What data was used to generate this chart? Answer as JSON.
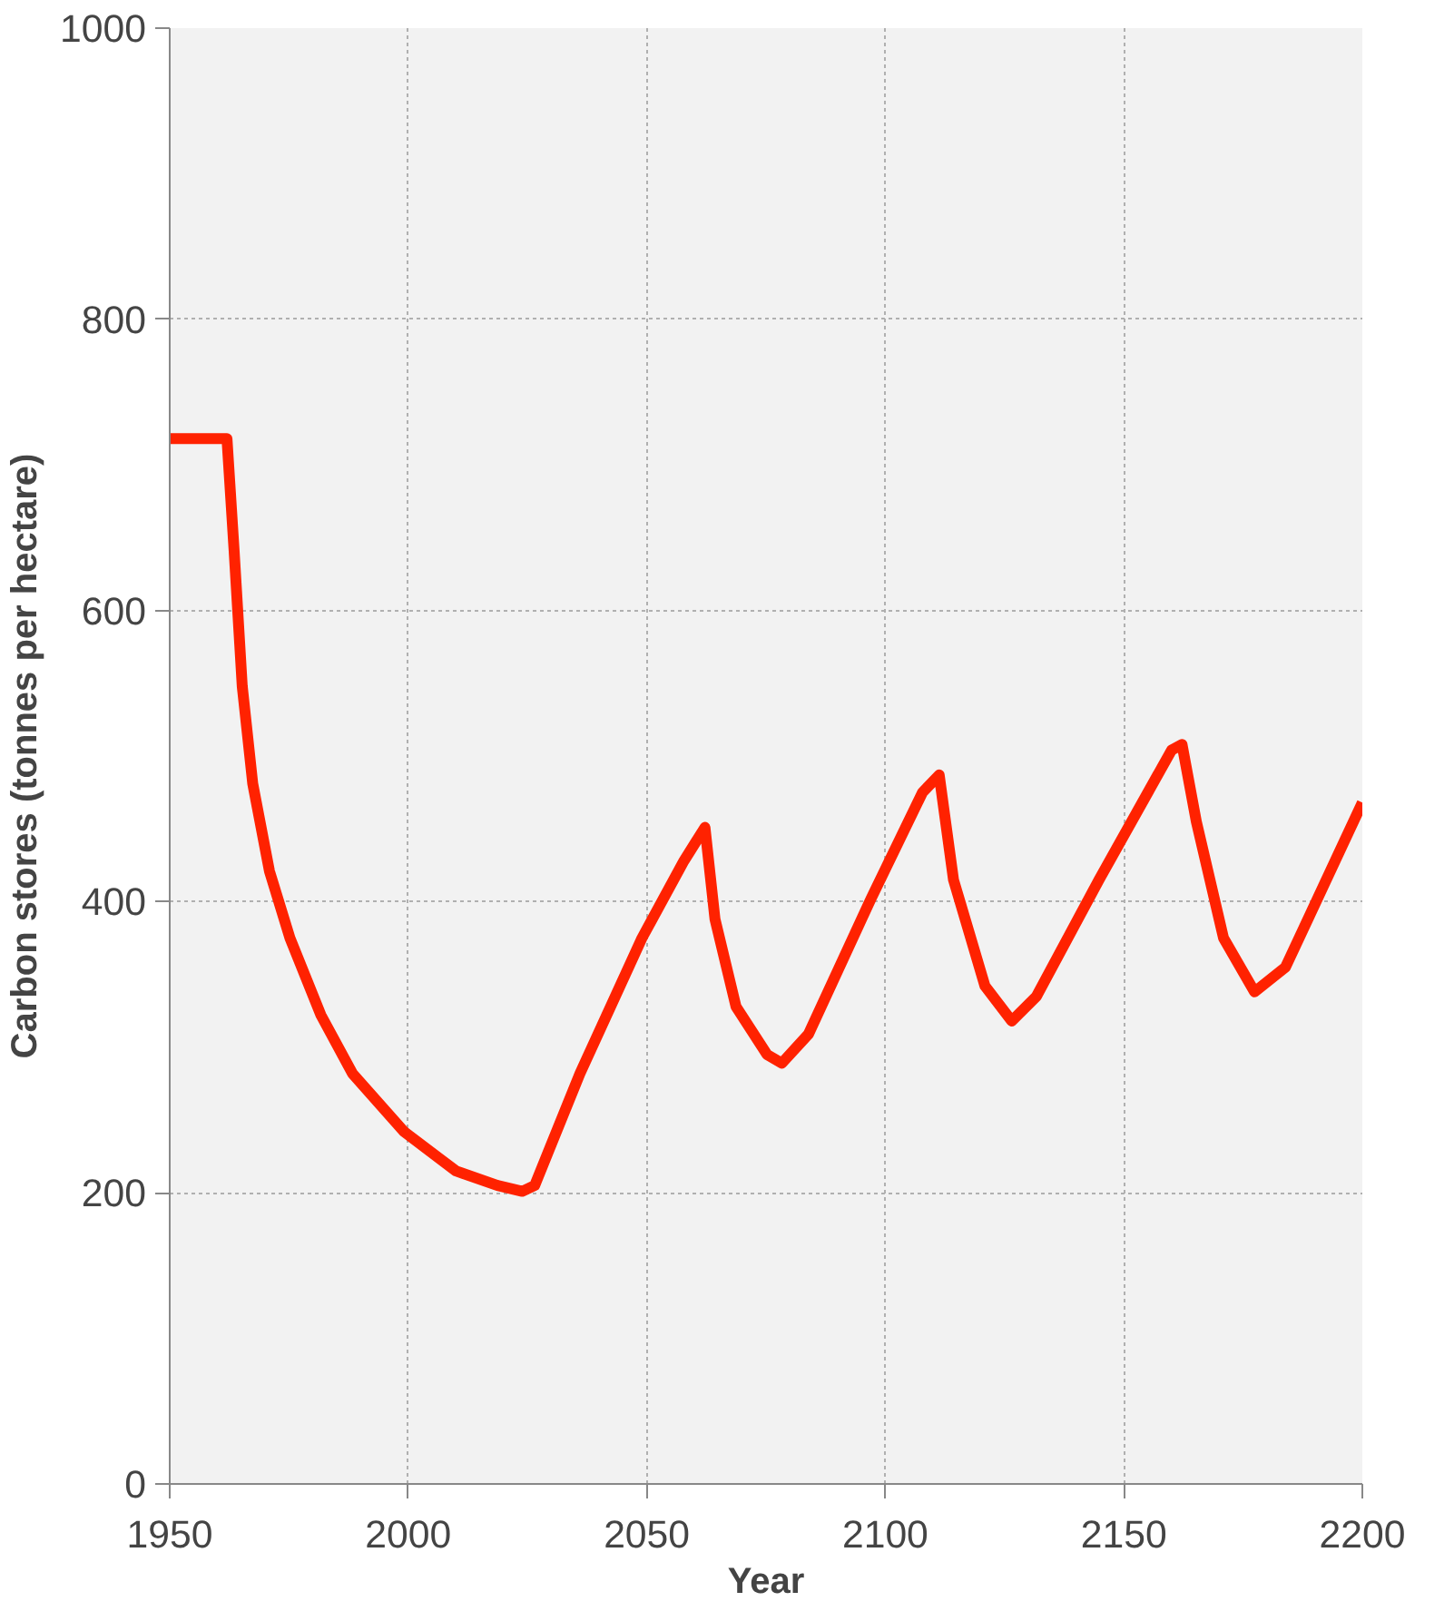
{
  "chart_data": {
    "type": "line",
    "xlabel": "Year",
    "ylabel": "Carbon stores (tonnes per hectare)",
    "x": [
      1950,
      1962,
      1963.5,
      1965.2,
      1967.4,
      1970.9,
      1975.2,
      1981.7,
      1988.3,
      1999.1,
      2010,
      2018.7,
      2023.9,
      2026.5,
      2036,
      2049,
      2057.8,
      2062.2,
      2064.3,
      2068.7,
      2075.2,
      2078.3,
      2083.9,
      2097,
      2107.8,
      2111.3,
      2114.3,
      2120.9,
      2126.5,
      2131.7,
      2144.8,
      2160,
      2162.2,
      2165.2,
      2170.9,
      2177.4,
      2183.9,
      2200
    ],
    "series": [
      {
        "color": "#ff2200",
        "values": [
          718,
          718,
          641,
          548,
          481,
          421,
          375,
          322,
          282,
          242,
          215,
          205,
          201,
          205,
          282,
          375,
          428,
          451,
          388,
          328,
          295,
          289,
          309,
          402,
          475,
          487,
          415,
          342,
          318,
          335,
          415,
          504,
          508,
          455,
          375,
          338,
          355,
          468
        ]
      }
    ],
    "xlim": [
      1950,
      2200
    ],
    "xticks": [
      1950,
      2000,
      2050,
      2100,
      2150,
      2200
    ],
    "ylim": [
      0,
      1000
    ],
    "yticks": [
      0,
      200,
      400,
      600,
      800,
      1000
    ],
    "grid": true,
    "marker": "none",
    "line_style": "solid"
  }
}
